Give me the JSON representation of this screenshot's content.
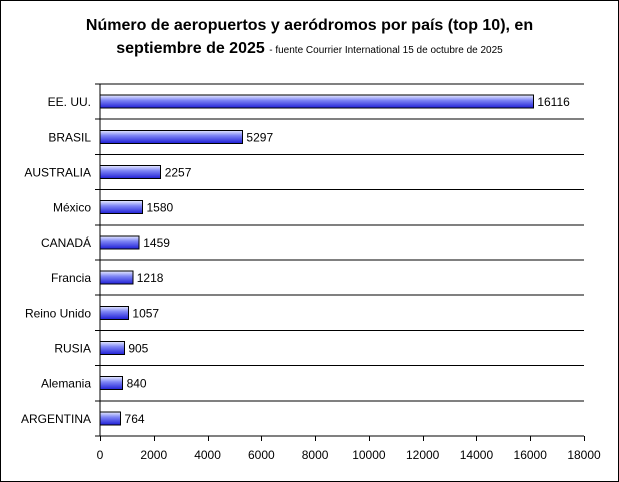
{
  "chart_data": {
    "type": "bar",
    "orientation": "horizontal",
    "title_line1": "Número de aeropuertos y aeródromos por país (top 10), en",
    "title_line2": "septiembre de 2025",
    "subtitle": "- fuente Courrier International 15 de octubre de 2025",
    "categories": [
      "EE. UU.",
      "BRASIL",
      "AUSTRALIA",
      "México",
      "CANADÁ",
      "Francia",
      "Reino Unido",
      "RUSIA",
      "Alemania",
      "ARGENTINA"
    ],
    "values": [
      16116,
      5297,
      2257,
      1580,
      1459,
      1218,
      1057,
      905,
      840,
      764
    ],
    "xlim": [
      0,
      18000
    ],
    "xticks": [
      0,
      2000,
      4000,
      6000,
      8000,
      10000,
      12000,
      14000,
      16000,
      18000
    ],
    "xlabel": "",
    "ylabel": "",
    "grid": "horizontal",
    "legend": "none",
    "colors": {
      "bar_light": "#e8ecff",
      "bar_mid": "#7f86f5",
      "bar_dark": "#1f1fd6",
      "bar_outline": "#000000"
    }
  }
}
